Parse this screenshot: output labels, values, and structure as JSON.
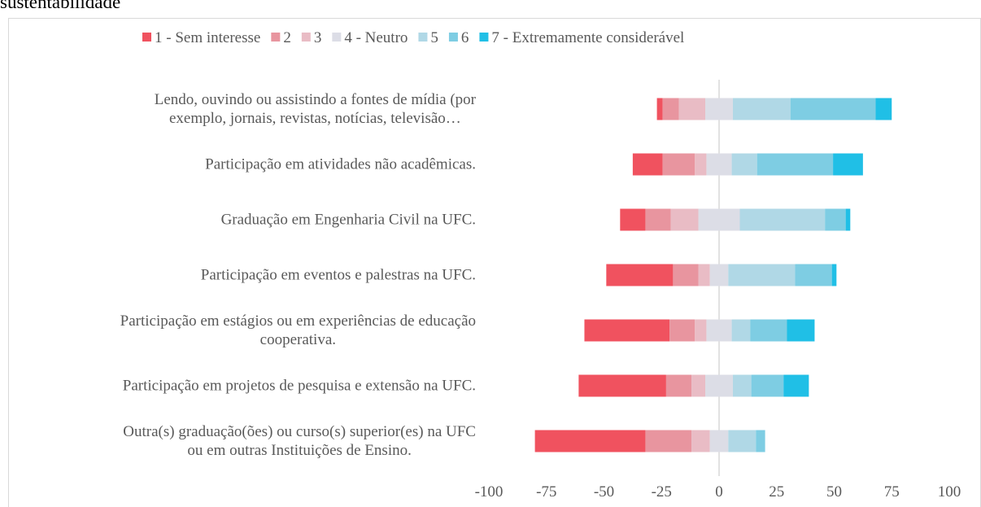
{
  "chart_data": {
    "type": "bar",
    "orientation": "horizontal",
    "stacked": "diverging",
    "title": "sustentabilidade",
    "categories": [
      "Lendo, ouvindo ou assistindo a fontes de mídia (por\nexemplo, jornais, revistas, notícias, televisão…",
      "Participação em atividades não acadêmicas.",
      "Graduação em Engenharia Civil na UFC.",
      "Participação em eventos e palestras na UFC.",
      "Participação em estágios ou em experiências de educação\ncooperativa.",
      "Participação em projetos de pesquisa e extensão na UFC.",
      "Outra(s) graduação(ões) ou curso(s) superior(es) na UFC\nou em outras Instituições de Ensino."
    ],
    "series": [
      {
        "name": "1 - Sem interesse",
        "color": "#f0525f",
        "values": [
          2.5,
          13,
          11,
          29,
          37,
          38,
          48
        ]
      },
      {
        "name": "2",
        "color": "#e8959f",
        "values": [
          7,
          14,
          11,
          11,
          11,
          11,
          20
        ]
      },
      {
        "name": "3",
        "color": "#e9bcc5",
        "values": [
          11.5,
          5,
          12,
          5,
          5,
          6,
          8
        ]
      },
      {
        "name": "4 - Neutro",
        "color": "#dcdde6",
        "values": [
          12,
          11,
          18,
          8,
          11,
          12,
          8
        ]
      },
      {
        "name": "5",
        "color": "#b0d8e6",
        "values": [
          25,
          11,
          37,
          29,
          8,
          8,
          12
        ]
      },
      {
        "name": "6",
        "color": "#7ecde3",
        "values": [
          37,
          33,
          9,
          16,
          16,
          14,
          4
        ]
      },
      {
        "name": "7 - Extremamente considerável",
        "color": "#20bfe6",
        "values": [
          7,
          13,
          2,
          2,
          12,
          11,
          0
        ]
      }
    ],
    "xlim": [
      -100,
      100
    ],
    "xticks": [
      -100,
      -75,
      -50,
      -25,
      0,
      25,
      50,
      75,
      100
    ],
    "zero_line": true,
    "legend": "top"
  }
}
